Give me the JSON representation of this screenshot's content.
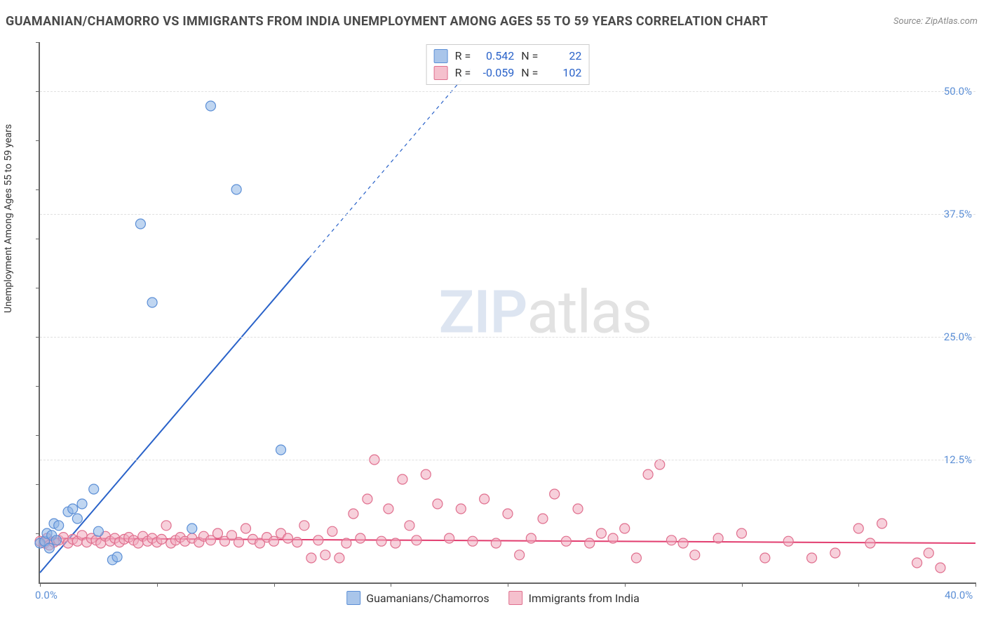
{
  "title": "GUAMANIAN/CHAMORRO VS IMMIGRANTS FROM INDIA UNEMPLOYMENT AMONG AGES 55 TO 59 YEARS CORRELATION CHART",
  "source_text": "Source: ZipAtlas.com",
  "y_axis_label": "Unemployment Among Ages 55 to 59 years",
  "watermark": {
    "zip": "ZIP",
    "atlas": "atlas"
  },
  "x_axis": {
    "min": 0,
    "max": 40,
    "ticks": [
      0,
      5,
      10,
      15,
      20,
      25,
      30,
      35,
      40
    ],
    "labels_shown": {
      "0": "0.0%",
      "40": "40.0%"
    },
    "label_color": "#5c8fd6"
  },
  "y_axis": {
    "min": 0,
    "max": 55,
    "ticks": [
      12.5,
      25,
      37.5,
      50
    ],
    "labels": {
      "12.5": "12.5%",
      "25": "25.0%",
      "37.5": "37.5%",
      "50": "50.0%"
    },
    "label_color": "#5c8fd6"
  },
  "gridline_color": "#e0e0e0",
  "background_color": "#ffffff",
  "stats_box": {
    "series_a": {
      "swatch_fill": "#a9c5ea",
      "swatch_stroke": "#5c8fd6",
      "r_label": "R =",
      "r_value": "0.542",
      "n_label": "N =",
      "n_value": "22"
    },
    "series_b": {
      "swatch_fill": "#f5c0cd",
      "swatch_stroke": "#e06f8e",
      "r_label": "R =",
      "r_value": "-0.059",
      "n_label": "N =",
      "n_value": "102"
    }
  },
  "bottom_legend": {
    "a": {
      "swatch_fill": "#a9c5ea",
      "swatch_stroke": "#5c8fd6",
      "label": "Guamanians/Chamorros"
    },
    "b": {
      "swatch_fill": "#f5c0cd",
      "swatch_stroke": "#e06f8e",
      "label": "Immigrants from India"
    }
  },
  "series": {
    "blue": {
      "name": "Guamanians/Chamorros",
      "marker_radius": 7,
      "fill": "rgba(140,180,230,0.55)",
      "stroke": "#5c8fd6",
      "stroke_width": 1.2,
      "trend": {
        "solid_end_x": 11.5,
        "dash_beyond": true,
        "slope_start": [
          0,
          1
        ],
        "slope_solid_end": [
          11.5,
          33
        ],
        "slope_dash_end": [
          18.5,
          52.5
        ],
        "stroke": "#2962c9",
        "width": 2
      },
      "points": [
        [
          0.0,
          4.0
        ],
        [
          0.2,
          4.2
        ],
        [
          0.3,
          5.0
        ],
        [
          0.4,
          3.5
        ],
        [
          0.5,
          4.8
        ],
        [
          0.6,
          6.0
        ],
        [
          0.7,
          4.3
        ],
        [
          0.8,
          5.8
        ],
        [
          1.2,
          7.2
        ],
        [
          1.4,
          7.5
        ],
        [
          1.6,
          6.5
        ],
        [
          1.8,
          8.0
        ],
        [
          2.3,
          9.5
        ],
        [
          2.5,
          5.2
        ],
        [
          3.1,
          2.3
        ],
        [
          3.3,
          2.6
        ],
        [
          4.3,
          36.5
        ],
        [
          4.8,
          28.5
        ],
        [
          6.5,
          5.5
        ],
        [
          7.3,
          48.5
        ],
        [
          8.4,
          40.0
        ],
        [
          10.3,
          13.5
        ]
      ]
    },
    "pink": {
      "name": "Immigrants from India",
      "marker_radius": 7,
      "fill": "rgba(240,170,190,0.55)",
      "stroke": "#e06f8e",
      "stroke_width": 1.2,
      "trend": {
        "start": [
          0,
          4.5
        ],
        "end": [
          40,
          4.0
        ],
        "stroke": "#e23d6f",
        "width": 2
      },
      "points": [
        [
          0.0,
          4.2
        ],
        [
          0.2,
          4.0
        ],
        [
          0.3,
          4.5
        ],
        [
          0.4,
          3.8
        ],
        [
          0.6,
          4.1
        ],
        [
          0.8,
          4.3
        ],
        [
          1.0,
          4.6
        ],
        [
          1.2,
          4.0
        ],
        [
          1.4,
          4.4
        ],
        [
          1.6,
          4.2
        ],
        [
          1.8,
          4.8
        ],
        [
          2.0,
          4.1
        ],
        [
          2.2,
          4.5
        ],
        [
          2.4,
          4.3
        ],
        [
          2.6,
          4.0
        ],
        [
          2.8,
          4.7
        ],
        [
          3.0,
          4.2
        ],
        [
          3.2,
          4.5
        ],
        [
          3.4,
          4.1
        ],
        [
          3.6,
          4.4
        ],
        [
          3.8,
          4.6
        ],
        [
          4.0,
          4.3
        ],
        [
          4.2,
          4.0
        ],
        [
          4.4,
          4.7
        ],
        [
          4.6,
          4.2
        ],
        [
          4.8,
          4.5
        ],
        [
          5.0,
          4.1
        ],
        [
          5.2,
          4.4
        ],
        [
          5.4,
          5.8
        ],
        [
          5.6,
          4.0
        ],
        [
          5.8,
          4.3
        ],
        [
          6.0,
          4.6
        ],
        [
          6.2,
          4.2
        ],
        [
          6.5,
          4.5
        ],
        [
          6.8,
          4.1
        ],
        [
          7.0,
          4.7
        ],
        [
          7.3,
          4.3
        ],
        [
          7.6,
          5.0
        ],
        [
          7.9,
          4.2
        ],
        [
          8.2,
          4.8
        ],
        [
          8.5,
          4.1
        ],
        [
          8.8,
          5.5
        ],
        [
          9.1,
          4.4
        ],
        [
          9.4,
          4.0
        ],
        [
          9.7,
          4.6
        ],
        [
          10.0,
          4.2
        ],
        [
          10.3,
          5.0
        ],
        [
          10.6,
          4.5
        ],
        [
          11.0,
          4.1
        ],
        [
          11.3,
          5.8
        ],
        [
          11.6,
          2.5
        ],
        [
          11.9,
          4.3
        ],
        [
          12.2,
          2.8
        ],
        [
          12.5,
          5.2
        ],
        [
          12.8,
          2.5
        ],
        [
          13.1,
          4.0
        ],
        [
          13.4,
          7.0
        ],
        [
          13.7,
          4.5
        ],
        [
          14.0,
          8.5
        ],
        [
          14.3,
          12.5
        ],
        [
          14.6,
          4.2
        ],
        [
          14.9,
          7.5
        ],
        [
          15.2,
          4.0
        ],
        [
          15.5,
          10.5
        ],
        [
          15.8,
          5.8
        ],
        [
          16.1,
          4.3
        ],
        [
          16.5,
          11.0
        ],
        [
          17.0,
          8.0
        ],
        [
          17.5,
          4.5
        ],
        [
          18.0,
          7.5
        ],
        [
          18.5,
          4.2
        ],
        [
          19.0,
          8.5
        ],
        [
          19.5,
          4.0
        ],
        [
          20.0,
          7.0
        ],
        [
          20.5,
          2.8
        ],
        [
          21.0,
          4.5
        ],
        [
          21.5,
          6.5
        ],
        [
          22.0,
          9.0
        ],
        [
          22.5,
          4.2
        ],
        [
          23.0,
          7.5
        ],
        [
          23.5,
          4.0
        ],
        [
          24.0,
          5.0
        ],
        [
          24.5,
          4.5
        ],
        [
          25.0,
          5.5
        ],
        [
          25.5,
          2.5
        ],
        [
          26.0,
          11.0
        ],
        [
          26.5,
          12.0
        ],
        [
          27.0,
          4.3
        ],
        [
          27.5,
          4.0
        ],
        [
          28.0,
          2.8
        ],
        [
          29.0,
          4.5
        ],
        [
          30.0,
          5.0
        ],
        [
          31.0,
          2.5
        ],
        [
          32.0,
          4.2
        ],
        [
          33.0,
          2.5
        ],
        [
          34.0,
          3.0
        ],
        [
          35.0,
          5.5
        ],
        [
          35.5,
          4.0
        ],
        [
          36.0,
          6.0
        ],
        [
          37.5,
          2.0
        ],
        [
          38.0,
          3.0
        ],
        [
          38.5,
          1.5
        ]
      ]
    }
  }
}
